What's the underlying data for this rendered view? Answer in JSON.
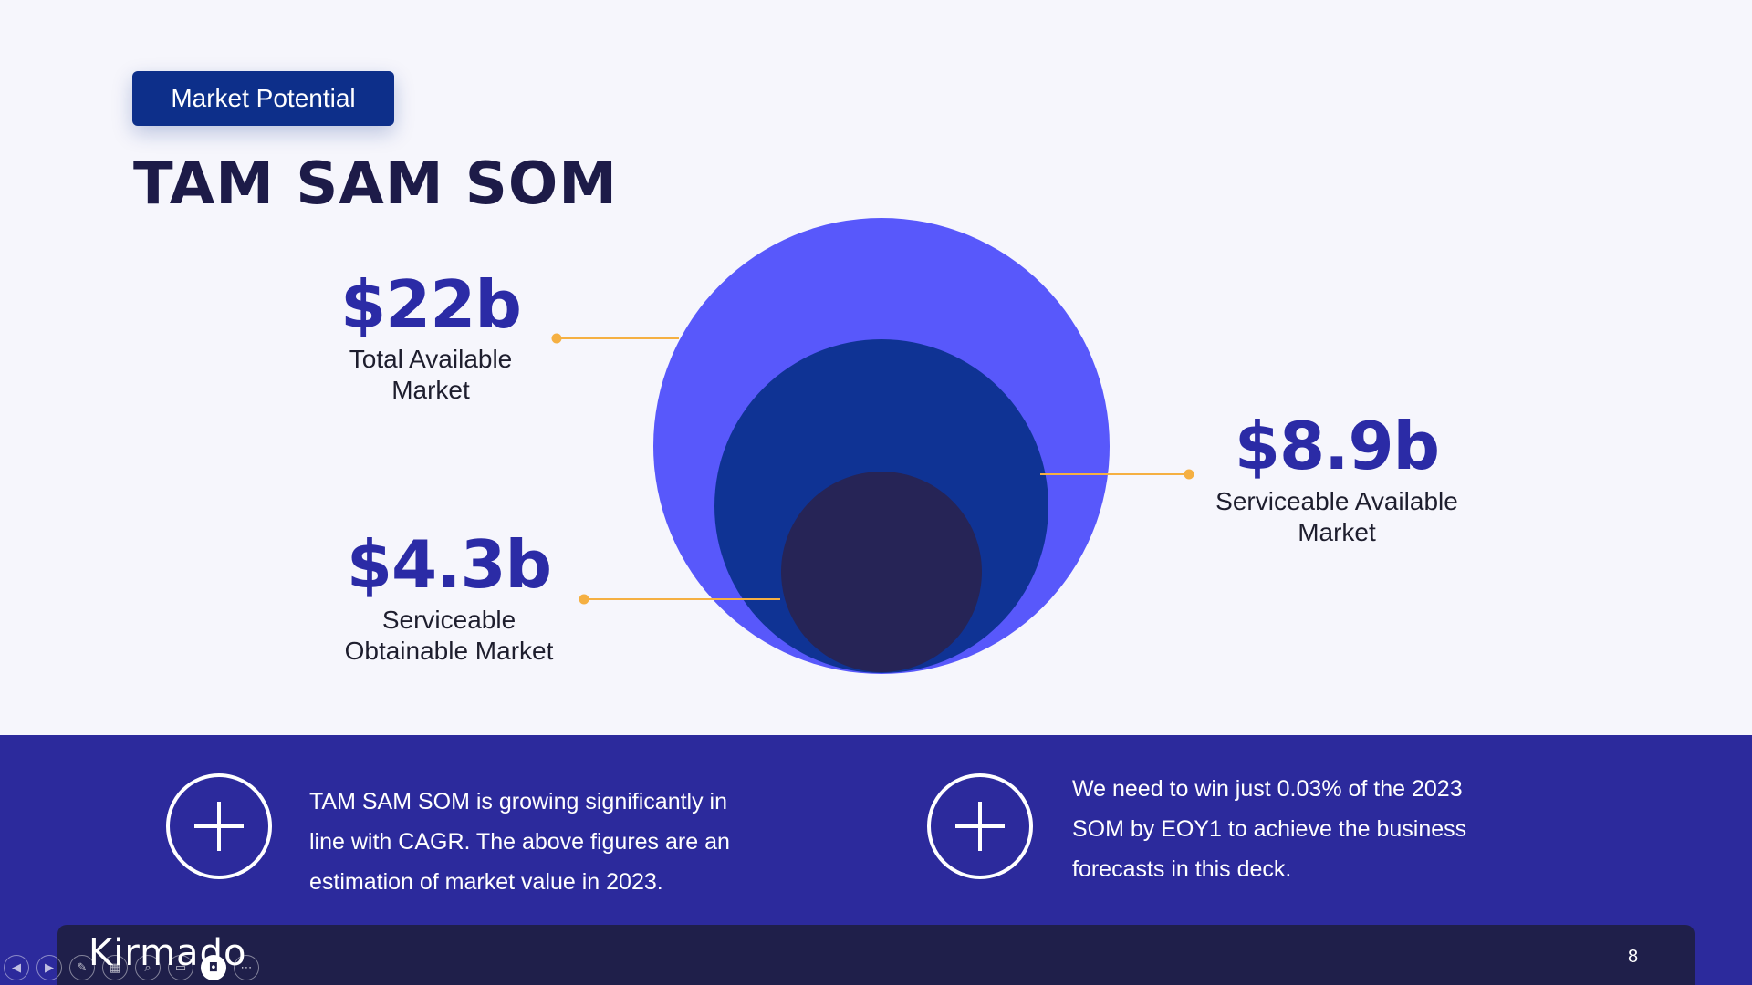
{
  "slide": {
    "tag": "Market Potential",
    "title": "TAM SAM SOM",
    "page_number": "8"
  },
  "markets": {
    "tam": {
      "value": "$22b",
      "label": "Total Available Market"
    },
    "sam": {
      "value": "$8.9b",
      "label": "Serviceable Available Market"
    },
    "som": {
      "value": "$4.3b",
      "label": "Serviceable Obtainable Market"
    }
  },
  "notes": [
    {
      "text": "TAM SAM SOM is growing significantly in line with CAGR. The above figures are an estimation of market value in 2023."
    },
    {
      "text": "We need to win just 0.03% of the 2023 SOM by EOY1 to achieve the business forecasts in this deck."
    }
  ],
  "footer": {
    "logo": "Kirmado"
  },
  "colors": {
    "tam_circle": "#5858fb",
    "sam_circle": "#0f3394",
    "som_circle": "#262456",
    "leader_line": "#f5b042",
    "band": "#2c2a9c",
    "value_text": "#2b2ba6"
  },
  "slideshow_controls": [
    "previous-icon",
    "next-icon",
    "pen-icon",
    "slides-grid-icon",
    "zoom-icon",
    "subtitles-icon",
    "camera-icon",
    "more-icon"
  ]
}
